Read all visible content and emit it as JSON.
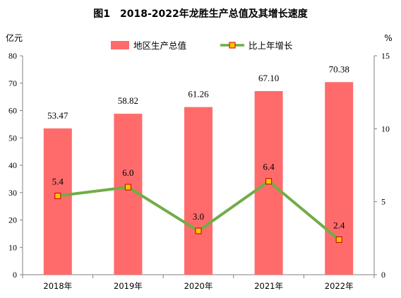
{
  "chart_data": {
    "type": "bar+line",
    "title": "图1　2018-2022年龙胜生产总值及其增长速度",
    "categories": [
      "2018年",
      "2019年",
      "2020年",
      "2021年",
      "2022年"
    ],
    "series": [
      {
        "name": "地区生产总值",
        "type": "bar",
        "axis": "left",
        "color": "#ff6b6b",
        "values": [
          53.47,
          58.82,
          61.26,
          67.1,
          70.38
        ],
        "labels": [
          "53.47",
          "58.82",
          "61.26",
          "67.10",
          "70.38"
        ]
      },
      {
        "name": "比上年增长",
        "type": "line",
        "axis": "right",
        "color": "#70ad47",
        "marker_fill": "#ffc000",
        "marker_stroke": "#c00000",
        "values": [
          5.4,
          6.0,
          3.0,
          6.4,
          2.4
        ],
        "labels": [
          "5.4",
          "6.0",
          "3.0",
          "6.4",
          "2.4"
        ]
      }
    ],
    "left_axis": {
      "unit": "亿元",
      "min": 0,
      "max": 80,
      "ticks": [
        "0",
        "10",
        "20",
        "30",
        "40",
        "50",
        "60",
        "70",
        "80"
      ]
    },
    "right_axis": {
      "unit": "%",
      "min": 0,
      "max": 15,
      "ticks": [
        "0",
        "5",
        "10",
        "15"
      ]
    },
    "legend_position": "top",
    "grid": false
  }
}
